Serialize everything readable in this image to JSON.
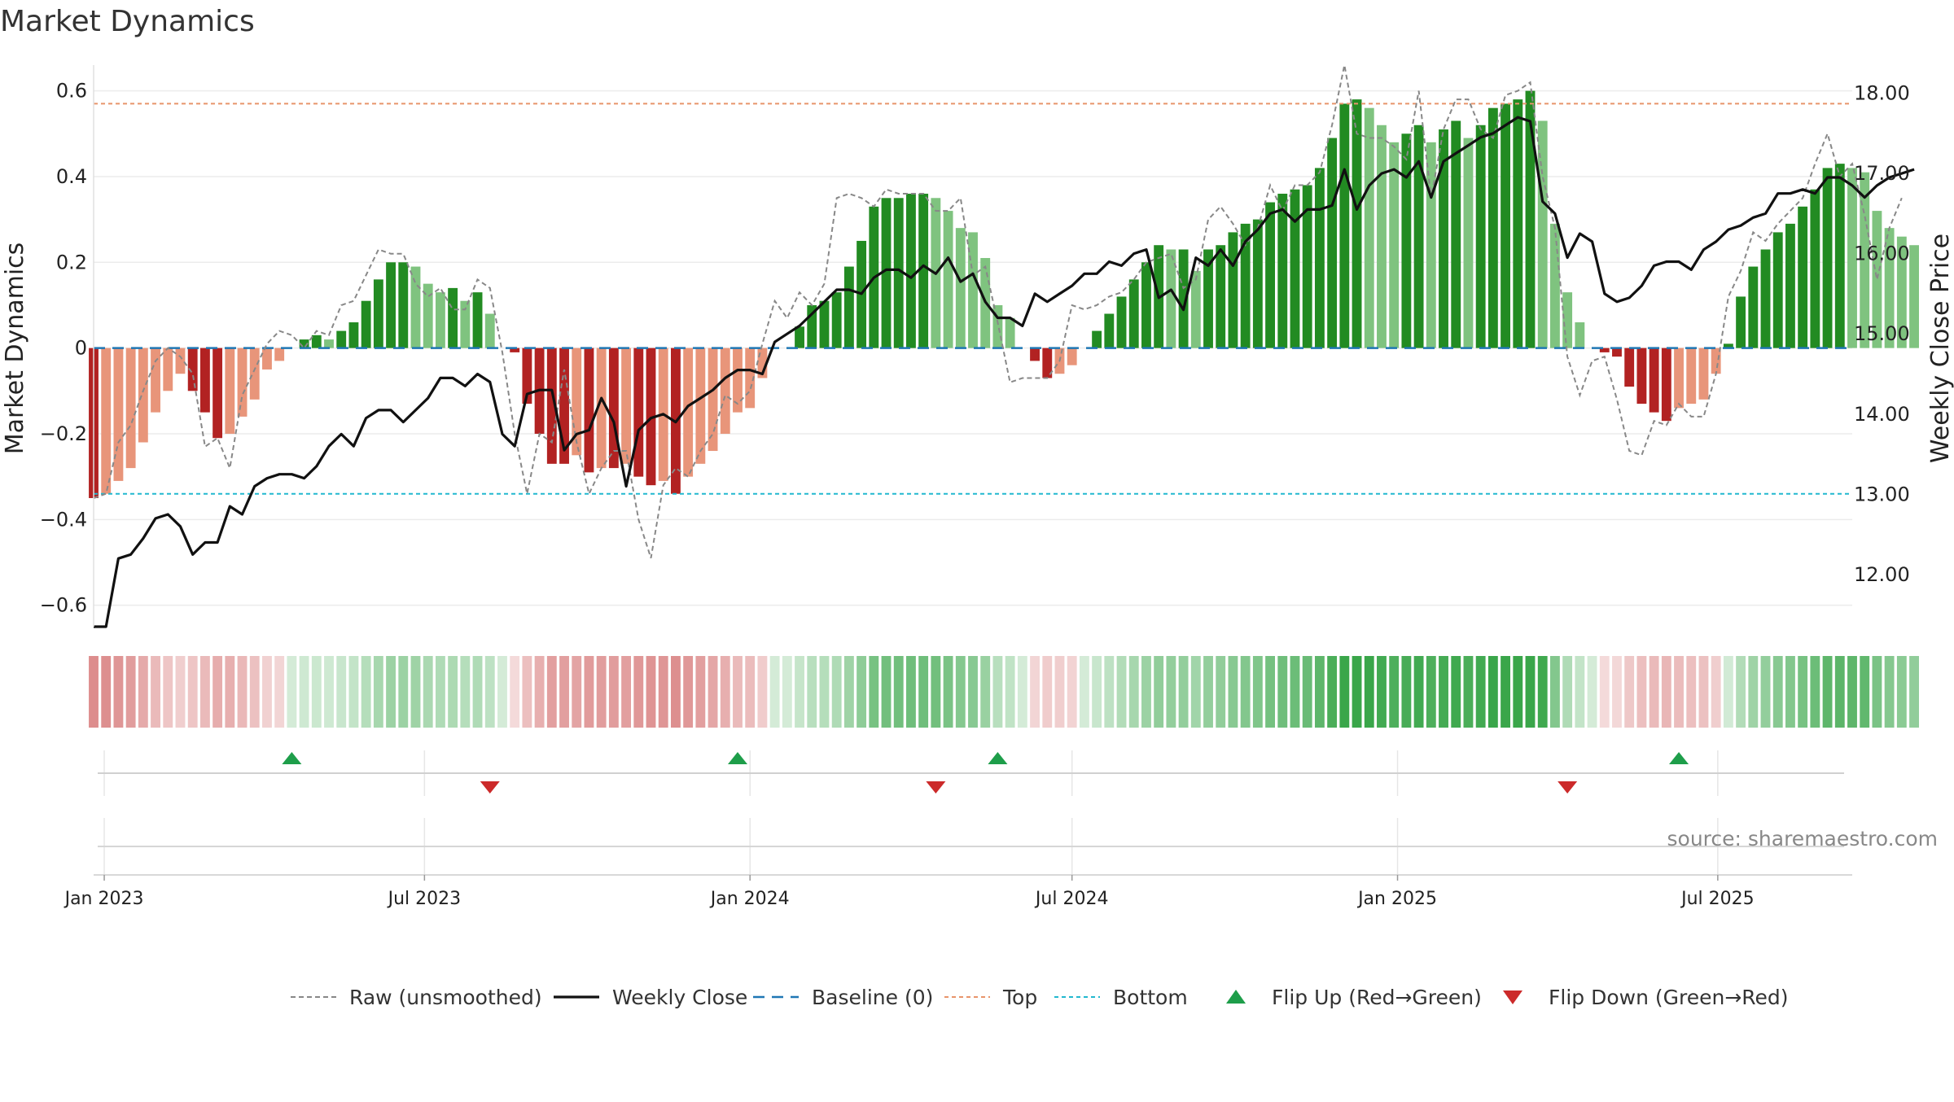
{
  "chart_data": {
    "type": "bar",
    "title": "Market Dynamics",
    "ylabel_left": "Market Dynamics",
    "ylabel_right": "Weekly Close Price",
    "ylim_left": [
      -0.65,
      0.66
    ],
    "ylim_right": [
      11.35,
      18.35
    ],
    "left_ticks": [
      0.6,
      0.4,
      0.2,
      0,
      -0.2,
      -0.4,
      -0.6
    ],
    "left_tick_labels": [
      "0.6",
      "0.4",
      "0.2",
      "0",
      "−0.2",
      "−0.4",
      "−0.6"
    ],
    "right_ticks": [
      18,
      17,
      16,
      15,
      14,
      13,
      12
    ],
    "right_tick_labels": [
      "18.00",
      "17.00",
      "16.00",
      "15.00",
      "14.00",
      "13.00",
      "12.00"
    ],
    "x_start": "2022-12-26",
    "x_end": "2025-09-15",
    "x_ticks": [
      {
        "date": "2023-01-01",
        "label": "Jan 2023"
      },
      {
        "date": "2023-07-01",
        "label": "Jul 2023"
      },
      {
        "date": "2024-01-01",
        "label": "Jan 2024"
      },
      {
        "date": "2024-07-01",
        "label": "Jul 2024"
      },
      {
        "date": "2025-01-01",
        "label": "Jan 2025"
      },
      {
        "date": "2025-07-01",
        "label": "Jul 2025"
      }
    ],
    "top_level": 0.57,
    "bottom_level": -0.34,
    "baseline": 0,
    "weeks_start": "2022-12-26",
    "bars": [
      -0.35,
      -0.34,
      -0.31,
      -0.28,
      -0.22,
      -0.15,
      -0.1,
      -0.06,
      -0.1,
      -0.15,
      -0.21,
      -0.2,
      -0.16,
      -0.12,
      -0.05,
      -0.03,
      0,
      0.02,
      0.03,
      0.02,
      0.04,
      0.06,
      0.11,
      0.16,
      0.2,
      0.2,
      0.19,
      0.15,
      0.13,
      0.14,
      0.11,
      0.13,
      0.08,
      0,
      -0.01,
      -0.13,
      -0.2,
      -0.27,
      -0.27,
      -0.25,
      -0.29,
      -0.28,
      -0.28,
      -0.27,
      -0.3,
      -0.32,
      -0.31,
      -0.34,
      -0.3,
      -0.27,
      -0.24,
      -0.2,
      -0.15,
      -0.14,
      -0.07,
      0,
      0,
      0.05,
      0.1,
      0.11,
      0.13,
      0.19,
      0.25,
      0.33,
      0.35,
      0.35,
      0.36,
      0.36,
      0.35,
      0.32,
      0.28,
      0.27,
      0.21,
      0.1,
      0.07,
      0,
      -0.03,
      -0.07,
      -0.06,
      -0.04,
      0,
      0.04,
      0.08,
      0.12,
      0.16,
      0.2,
      0.24,
      0.23,
      0.23,
      0.18,
      0.23,
      0.24,
      0.27,
      0.29,
      0.3,
      0.34,
      0.36,
      0.37,
      0.38,
      0.42,
      0.49,
      0.57,
      0.58,
      0.56,
      0.52,
      0.48,
      0.5,
      0.52,
      0.48,
      0.51,
      0.53,
      0.49,
      0.52,
      0.56,
      0.57,
      0.58,
      0.6,
      0.53,
      0.29,
      0.13,
      0.06,
      0,
      -0.01,
      -0.02,
      -0.09,
      -0.13,
      -0.15,
      -0.17,
      -0.14,
      -0.13,
      -0.12,
      -0.06,
      0.01,
      0.12,
      0.19,
      0.23,
      0.27,
      0.29,
      0.33,
      0.37,
      0.42,
      0.43,
      0.42,
      0.41,
      0.32,
      0.28,
      0.26,
      0.24
    ],
    "raw": [
      -0.35,
      -0.34,
      -0.22,
      -0.18,
      -0.1,
      -0.03,
      0,
      -0.02,
      -0.06,
      -0.23,
      -0.21,
      -0.28,
      -0.11,
      -0.05,
      0.01,
      0.04,
      0.03,
      0,
      0.04,
      0.03,
      0.1,
      0.11,
      0.17,
      0.23,
      0.22,
      0.22,
      0.15,
      0.12,
      0.14,
      0.09,
      0.09,
      0.16,
      0.14,
      -0.01,
      -0.2,
      -0.34,
      -0.2,
      -0.22,
      -0.05,
      -0.22,
      -0.34,
      -0.28,
      -0.24,
      -0.24,
      -0.4,
      -0.49,
      -0.32,
      -0.28,
      -0.3,
      -0.24,
      -0.2,
      -0.11,
      -0.13,
      -0.1,
      0.01,
      0.11,
      0.07,
      0.13,
      0.1,
      0.15,
      0.35,
      0.36,
      0.35,
      0.33,
      0.37,
      0.36,
      0.36,
      0.36,
      0.32,
      0.32,
      0.35,
      0.17,
      0.19,
      0.06,
      -0.08,
      -0.07,
      -0.07,
      -0.07,
      -0.03,
      0.1,
      0.09,
      0.1,
      0.12,
      0.13,
      0.16,
      0.2,
      0.21,
      0.22,
      0.14,
      0.16,
      0.3,
      0.33,
      0.29,
      0.24,
      0.28,
      0.38,
      0.32,
      0.38,
      0.38,
      0.41,
      0.52,
      0.66,
      0.5,
      0.49,
      0.49,
      0.47,
      0.44,
      0.6,
      0.35,
      0.51,
      0.58,
      0.58,
      0.51,
      0.49,
      0.59,
      0.6,
      0.62,
      0.4,
      0.28,
      -0.02,
      -0.11,
      -0.03,
      -0.02,
      -0.12,
      -0.24,
      -0.25,
      -0.17,
      -0.18,
      -0.13,
      -0.16,
      -0.16,
      -0.06,
      0.12,
      0.18,
      0.27,
      0.25,
      0.29,
      0.32,
      0.35,
      0.43,
      0.5,
      0.4,
      0.43,
      0.31,
      0.16,
      0.28,
      0.35
    ],
    "close": [
      11.35,
      11.35,
      12.2,
      12.25,
      12.45,
      12.7,
      12.75,
      12.6,
      12.25,
      12.4,
      12.4,
      12.85,
      12.75,
      13.1,
      13.2,
      13.25,
      13.25,
      13.2,
      13.35,
      13.6,
      13.75,
      13.6,
      13.95,
      14.05,
      14.05,
      13.9,
      14.05,
      14.2,
      14.45,
      14.45,
      14.35,
      14.5,
      14.4,
      13.75,
      13.6,
      14.25,
      14.3,
      14.3,
      13.55,
      13.75,
      13.8,
      14.2,
      13.9,
      13.1,
      13.8,
      13.95,
      14.0,
      13.9,
      14.1,
      14.2,
      14.3,
      14.45,
      14.55,
      14.55,
      14.5,
      14.9,
      15.0,
      15.1,
      15.25,
      15.4,
      15.55,
      15.55,
      15.5,
      15.7,
      15.8,
      15.8,
      15.7,
      15.85,
      15.75,
      15.95,
      15.65,
      15.75,
      15.4,
      15.2,
      15.2,
      15.1,
      15.5,
      15.4,
      15.5,
      15.6,
      15.75,
      15.75,
      15.9,
      15.85,
      16.0,
      16.05,
      15.45,
      15.55,
      15.3,
      15.95,
      15.85,
      16.05,
      15.85,
      16.15,
      16.3,
      16.5,
      16.55,
      16.4,
      16.55,
      16.55,
      16.6,
      17.05,
      16.55,
      16.85,
      17.0,
      17.05,
      16.95,
      17.15,
      16.7,
      17.15,
      17.25,
      17.35,
      17.45,
      17.5,
      17.6,
      17.7,
      17.65,
      16.65,
      16.5,
      15.95,
      16.25,
      16.15,
      15.5,
      15.4,
      15.45,
      15.6,
      15.85,
      15.9,
      15.9,
      15.8,
      16.05,
      16.15,
      16.3,
      16.35,
      16.45,
      16.5,
      16.75,
      16.75,
      16.8,
      16.75,
      16.95,
      16.95,
      16.85,
      16.7,
      16.85,
      16.95,
      17.0,
      17.05
    ],
    "flip_up": [
      "2023-04-17",
      "2023-12-25",
      "2024-05-20",
      "2025-06-09"
    ],
    "flip_down": [
      "2023-08-07",
      "2024-04-15",
      "2025-04-07"
    ],
    "legend_position": "bottom",
    "legend": [
      {
        "key": "raw",
        "label": "Raw (unsmoothed)"
      },
      {
        "key": "close",
        "label": "Weekly Close"
      },
      {
        "key": "baseline",
        "label": "Baseline (0)"
      },
      {
        "key": "top",
        "label": "Top"
      },
      {
        "key": "bottom",
        "label": "Bottom"
      },
      {
        "key": "flipup",
        "label": "Flip Up (Red→Green)"
      },
      {
        "key": "flipdown",
        "label": "Flip Down (Green→Red)"
      }
    ],
    "source": "source: sharemaestro.com",
    "colors": {
      "strong_green": "#228b22",
      "light_green": "#7fc37f",
      "strong_red": "#b22222",
      "light_red": "#e8957a",
      "close_line": "#111111",
      "raw_line": "#888888",
      "baseline": "#1f77b4",
      "top": "#e8956b",
      "bottom": "#22b8cf",
      "flip_up": "#1e9e4a",
      "flip_down": "#cc2a2a"
    }
  }
}
